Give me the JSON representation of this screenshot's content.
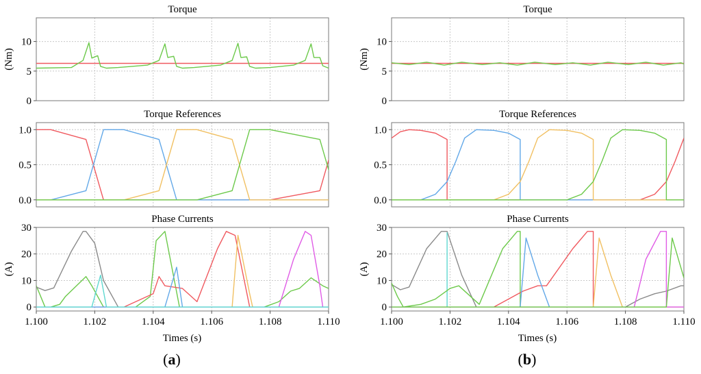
{
  "colors": {
    "red": "#f0595f",
    "green": "#6cc94a",
    "blue": "#62a8e8",
    "orange": "#f1c062",
    "cyan": "#5fd8d0",
    "purple": "#e05ce6",
    "gray": "#8a8a8a",
    "grid": "#c8c8c8"
  },
  "panels": [
    {
      "label_open": "(",
      "label_letter": "a",
      "label_close": ")",
      "xlabel": "Times (s)",
      "xticks": [
        "1.100",
        "1.102",
        "1.104",
        "1.106",
        "1.108",
        "1.110"
      ]
    },
    {
      "label_open": "(",
      "label_letter": "b",
      "label_close": ")",
      "xlabel": "Times (s)",
      "xticks": [
        "1.100",
        "1.102",
        "1.104",
        "1.106",
        "1.108",
        "1.110"
      ]
    }
  ],
  "chart_data": [
    {
      "type": "line",
      "panel": "a",
      "title": "Torque",
      "ylabel": "(Nm)",
      "xlim": [
        1.1,
        1.11
      ],
      "ylim": [
        0,
        14
      ],
      "yticks": [
        "0",
        "5",
        "10"
      ],
      "yticks_values": [
        0,
        5,
        10
      ],
      "grid": true,
      "series": [
        {
          "color": "red",
          "x": [
            1.1,
            1.11
          ],
          "y": [
            6.3,
            6.3
          ]
        },
        {
          "color": "green",
          "x": [
            1.1,
            1.1012,
            1.1016,
            1.1018,
            1.1019,
            1.1021,
            1.1022,
            1.1024,
            1.1028,
            1.1038,
            1.1042,
            1.1044,
            1.1045,
            1.1047,
            1.1048,
            1.105,
            1.1054,
            1.1063,
            1.1067,
            1.1069,
            1.107,
            1.1072,
            1.1073,
            1.1075,
            1.108,
            1.1088,
            1.1092,
            1.1094,
            1.1095,
            1.1097,
            1.1098,
            1.11
          ],
          "y": [
            5.5,
            5.6,
            6.8,
            9.8,
            7.2,
            7.6,
            5.8,
            5.5,
            5.6,
            6.0,
            6.8,
            9.6,
            7.3,
            7.5,
            5.8,
            5.5,
            5.6,
            6.0,
            6.8,
            9.7,
            7.3,
            7.4,
            5.8,
            5.5,
            5.6,
            6.0,
            6.8,
            9.6,
            7.3,
            7.3,
            5.9,
            5.5
          ]
        }
      ]
    },
    {
      "type": "line",
      "panel": "a",
      "title": "Torque References",
      "ylabel": "",
      "xlim": [
        1.1,
        1.11
      ],
      "ylim": [
        -0.1,
        1.1
      ],
      "yticks": [
        "0.0",
        "0.5",
        "1.0"
      ],
      "yticks_values": [
        0,
        0.5,
        1.0
      ],
      "grid": true,
      "series": [
        {
          "color": "red",
          "x": [
            1.1,
            1.1005,
            1.1017,
            1.1023,
            1.108,
            1.1097,
            1.1103,
            1.11
          ],
          "y": [
            1.0,
            1.0,
            0.86,
            0.0,
            0.0,
            0.13,
            1.0,
            1.0
          ]
        },
        {
          "color": "blue",
          "x": [
            1.1,
            1.1005,
            1.1017,
            1.1023,
            1.103,
            1.1042,
            1.1048,
            1.11
          ],
          "y": [
            0.0,
            0.0,
            0.13,
            1.0,
            1.0,
            0.86,
            0.0,
            0.0
          ]
        },
        {
          "color": "orange",
          "x": [
            1.1,
            1.103,
            1.1042,
            1.1048,
            1.1055,
            1.1067,
            1.1073,
            1.11
          ],
          "y": [
            0.0,
            0.0,
            0.13,
            1.0,
            1.0,
            0.86,
            0.0,
            0.0
          ]
        },
        {
          "color": "green",
          "x": [
            1.1,
            1.1055,
            1.1067,
            1.1073,
            1.108,
            1.1097,
            1.1103,
            1.11
          ],
          "y": [
            0.0,
            0.0,
            0.13,
            1.0,
            1.0,
            0.86,
            0.0,
            0.0
          ]
        }
      ]
    },
    {
      "type": "line",
      "panel": "a",
      "title": "Phase Currents",
      "ylabel": "(A)",
      "xlim": [
        1.1,
        1.11
      ],
      "ylim": [
        -1.5,
        30
      ],
      "yticks": [
        "0",
        "10",
        "20",
        "30"
      ],
      "yticks_values": [
        0,
        10,
        20,
        30
      ],
      "grid": true,
      "series": [
        {
          "color": "green",
          "x": [
            1.1,
            1.1003,
            1.1005,
            1.1008,
            1.101,
            1.1017,
            1.1019,
            1.1023,
            1.1024,
            1.1034,
            1.1039,
            1.1041,
            1.1044,
            1.1049,
            1.105,
            1.1078,
            1.1083,
            1.1087,
            1.109,
            1.1094,
            1.1098,
            1.11
          ],
          "y": [
            8,
            0,
            0,
            1,
            4,
            11.5,
            8,
            0,
            0,
            0,
            4,
            25,
            28.5,
            0,
            0,
            0,
            2,
            6,
            7,
            11,
            8,
            7
          ]
        },
        {
          "color": "red",
          "x": [
            1.1,
            1.103,
            1.104,
            1.1042,
            1.1044,
            1.105,
            1.1055,
            1.1062,
            1.1065,
            1.1068,
            1.1073,
            1.1074,
            1.11
          ],
          "y": [
            0,
            0,
            5,
            11.5,
            8,
            7,
            2,
            22,
            28.5,
            27,
            0,
            0,
            0
          ]
        },
        {
          "color": "gray",
          "x": [
            1.1,
            1.1003,
            1.1006,
            1.1012,
            1.1016,
            1.1017,
            1.102,
            1.1023,
            1.1028,
            1.11
          ],
          "y": [
            7.5,
            6.2,
            7.2,
            21,
            28.5,
            28.5,
            24,
            10,
            0,
            0
          ]
        },
        {
          "color": "orange",
          "x": [
            1.1,
            1.1067,
            1.1069,
            1.1073,
            1.1074,
            1.11
          ],
          "y": [
            0,
            0,
            27,
            5,
            0,
            0
          ]
        },
        {
          "color": "purple",
          "x": [
            1.1,
            1.1083,
            1.1088,
            1.1092,
            1.1094,
            1.1097,
            1.1098,
            1.11
          ],
          "y": [
            0,
            0,
            18,
            28.5,
            27,
            8,
            0,
            0
          ]
        },
        {
          "color": "blue",
          "x": [
            1.1,
            1.1044,
            1.1048,
            1.105,
            1.11
          ],
          "y": [
            0,
            0,
            15,
            0,
            0
          ]
        },
        {
          "color": "cyan",
          "x": [
            1.1,
            1.1019,
            1.1022,
            1.1024,
            1.11
          ],
          "y": [
            0,
            0,
            12,
            0,
            0
          ]
        }
      ]
    },
    {
      "type": "line",
      "panel": "b",
      "title": "Torque",
      "ylabel": "(Nm)",
      "xlim": [
        1.1,
        1.11
      ],
      "ylim": [
        0,
        14
      ],
      "yticks": [
        "0",
        "5",
        "10"
      ],
      "yticks_values": [
        0,
        5,
        10
      ],
      "grid": true,
      "series": [
        {
          "color": "red",
          "x": [
            1.1,
            1.11
          ],
          "y": [
            6.3,
            6.3
          ]
        },
        {
          "color": "green",
          "x": [
            1.1,
            1.1006,
            1.1012,
            1.1018,
            1.1024,
            1.1031,
            1.1037,
            1.1043,
            1.1049,
            1.1056,
            1.1062,
            1.1068,
            1.1074,
            1.1081,
            1.1087,
            1.1093,
            1.1099,
            1.11
          ],
          "y": [
            6.4,
            6.1,
            6.5,
            6.0,
            6.5,
            6.1,
            6.4,
            6.0,
            6.5,
            6.1,
            6.4,
            6.0,
            6.5,
            6.1,
            6.5,
            6.0,
            6.4,
            6.2
          ]
        }
      ]
    },
    {
      "type": "line",
      "panel": "b",
      "title": "Torque References",
      "ylabel": "",
      "xlim": [
        1.1,
        1.11
      ],
      "ylim": [
        -0.1,
        1.1
      ],
      "yticks": [
        "0.0",
        "0.5",
        "1.0"
      ],
      "yticks_values": [
        0,
        0.5,
        1.0
      ],
      "grid": true,
      "series": [
        {
          "color": "red",
          "x": [
            1.1,
            1.1003,
            1.1006,
            1.101,
            1.1015,
            1.1019,
            1.1019,
            1.1085,
            1.109,
            1.1094,
            1.1097,
            1.11
          ],
          "y": [
            0.88,
            0.97,
            1.0,
            0.99,
            0.95,
            0.86,
            0.0,
            0.0,
            0.08,
            0.26,
            0.55,
            0.88
          ]
        },
        {
          "color": "blue",
          "x": [
            1.1,
            1.101,
            1.1015,
            1.1019,
            1.1022,
            1.1025,
            1.1029,
            1.1035,
            1.104,
            1.1044,
            1.1044,
            1.11
          ],
          "y": [
            0.0,
            0.0,
            0.08,
            0.26,
            0.55,
            0.88,
            1.0,
            0.99,
            0.95,
            0.86,
            0.0,
            0.0
          ]
        },
        {
          "color": "orange",
          "x": [
            1.1,
            1.1035,
            1.104,
            1.1044,
            1.1047,
            1.105,
            1.1054,
            1.106,
            1.1065,
            1.1069,
            1.1069,
            1.11
          ],
          "y": [
            0.0,
            0.0,
            0.08,
            0.26,
            0.55,
            0.88,
            1.0,
            0.99,
            0.95,
            0.86,
            0.0,
            0.0
          ]
        },
        {
          "color": "green",
          "x": [
            1.1,
            1.106,
            1.1065,
            1.1069,
            1.1072,
            1.1075,
            1.1079,
            1.1085,
            1.109,
            1.1094,
            1.1094,
            1.11
          ],
          "y": [
            0.0,
            0.0,
            0.08,
            0.26,
            0.55,
            0.88,
            1.0,
            0.99,
            0.95,
            0.86,
            0.0,
            0.0
          ]
        }
      ]
    },
    {
      "type": "line",
      "panel": "b",
      "title": "Phase Currents",
      "ylabel": "(A)",
      "xlim": [
        1.1,
        1.11
      ],
      "ylim": [
        -1.5,
        30
      ],
      "yticks": [
        "0",
        "10",
        "20",
        "30"
      ],
      "yticks_values": [
        0,
        10,
        20,
        30
      ],
      "grid": true,
      "series": [
        {
          "color": "gray",
          "x": [
            1.1,
            1.1003,
            1.1006,
            1.1012,
            1.1017,
            1.1019,
            1.1024,
            1.1029,
            1.108,
            1.1085,
            1.109,
            1.1094,
            1.1099,
            1.11
          ],
          "y": [
            8.5,
            6.5,
            7.5,
            22,
            28.5,
            28.5,
            12,
            0,
            0,
            3,
            5,
            6,
            8,
            8
          ]
        },
        {
          "color": "cyan",
          "x": [
            1.1,
            1.1019,
            1.1019,
            1.1019,
            1.11
          ],
          "y": [
            0,
            0,
            28,
            0,
            0
          ]
        },
        {
          "color": "green",
          "x": [
            1.1,
            1.1002,
            1.1004,
            1.101,
            1.1015,
            1.102,
            1.1023,
            1.103,
            1.1038,
            1.1043,
            1.1044,
            1.1044,
            1.11
          ],
          "y": [
            9,
            4,
            0,
            1,
            3,
            7,
            8,
            1,
            22,
            28.5,
            28.5,
            0,
            0
          ]
        },
        {
          "color": "red",
          "x": [
            1.1,
            1.1035,
            1.104,
            1.1045,
            1.105,
            1.1053,
            1.1062,
            1.1067,
            1.1069,
            1.1069,
            1.11
          ],
          "y": [
            0,
            0,
            3,
            6,
            8,
            8,
            22,
            28.5,
            28.5,
            0,
            0
          ]
        },
        {
          "color": "blue",
          "x": [
            1.1,
            1.1044,
            1.1046,
            1.105,
            1.1054,
            1.11
          ],
          "y": [
            0,
            0,
            26,
            12,
            0,
            0
          ]
        },
        {
          "color": "orange",
          "x": [
            1.1,
            1.1069,
            1.1071,
            1.1075,
            1.1079,
            1.11
          ],
          "y": [
            0,
            0,
            26,
            12,
            0,
            0
          ]
        },
        {
          "color": "purple",
          "x": [
            1.1,
            1.1083,
            1.1087,
            1.1092,
            1.1094,
            1.1094,
            1.11
          ],
          "y": [
            0,
            0,
            18,
            28.5,
            28.5,
            0,
            0
          ]
        },
        {
          "color": "green",
          "x": [
            1.1,
            1.1094,
            1.1096,
            1.11
          ],
          "y": [
            0,
            0,
            26,
            11
          ]
        }
      ]
    }
  ]
}
